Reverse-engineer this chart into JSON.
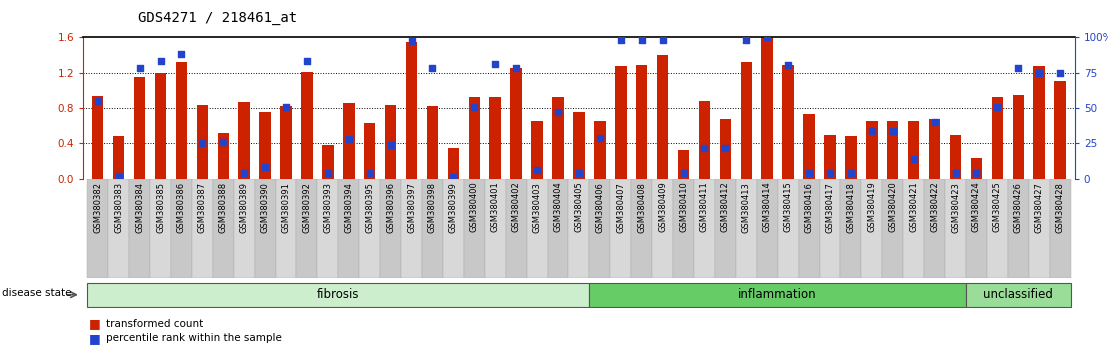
{
  "title": "GDS4271 / 218461_at",
  "samples": [
    "GSM380382",
    "GSM380383",
    "GSM380384",
    "GSM380385",
    "GSM380386",
    "GSM380387",
    "GSM380388",
    "GSM380389",
    "GSM380390",
    "GSM380391",
    "GSM380392",
    "GSM380393",
    "GSM380394",
    "GSM380395",
    "GSM380396",
    "GSM380397",
    "GSM380398",
    "GSM380399",
    "GSM380400",
    "GSM380401",
    "GSM380402",
    "GSM380403",
    "GSM380404",
    "GSM380405",
    "GSM380406",
    "GSM380407",
    "GSM380408",
    "GSM380409",
    "GSM380410",
    "GSM380411",
    "GSM380412",
    "GSM380413",
    "GSM380414",
    "GSM380415",
    "GSM380416",
    "GSM380417",
    "GSM380418",
    "GSM380419",
    "GSM380420",
    "GSM380421",
    "GSM380422",
    "GSM380423",
    "GSM380424",
    "GSM380425",
    "GSM380426",
    "GSM380427",
    "GSM380428"
  ],
  "bar_values": [
    0.93,
    0.48,
    1.15,
    1.19,
    1.32,
    0.83,
    0.52,
    0.87,
    0.75,
    0.82,
    1.21,
    0.38,
    0.86,
    0.63,
    0.83,
    1.55,
    0.82,
    0.35,
    0.92,
    0.92,
    1.25,
    0.65,
    0.92,
    0.75,
    0.65,
    1.27,
    1.28,
    1.4,
    0.33,
    0.88,
    0.68,
    1.32,
    1.6,
    1.28,
    0.73,
    0.5,
    0.48,
    0.65,
    0.65,
    0.65,
    0.68,
    0.5,
    0.23,
    0.92,
    0.95,
    1.27,
    1.1
  ],
  "dot_values_pct": [
    55,
    2,
    78,
    83,
    88,
    25,
    26,
    4,
    8,
    51,
    83,
    4,
    28,
    4,
    24,
    97,
    78,
    1,
    51,
    81,
    78,
    6,
    47,
    4,
    29,
    98,
    98,
    98,
    4,
    22,
    22,
    98,
    100,
    80,
    4,
    4,
    4,
    34,
    34,
    14,
    40,
    4,
    4,
    51,
    78,
    75,
    75
  ],
  "groups": [
    {
      "label": "fibrosis",
      "start": 0,
      "end": 24,
      "color": "#cceecc"
    },
    {
      "label": "inflammation",
      "start": 24,
      "end": 42,
      "color": "#66cc66"
    },
    {
      "label": "unclassified",
      "start": 42,
      "end": 47,
      "color": "#99dd99"
    }
  ],
  "ylim": [
    0,
    1.6
  ],
  "y_ticks_left": [
    0,
    0.4,
    0.8,
    1.2,
    1.6
  ],
  "y_ticks_right": [
    0,
    25,
    50,
    75,
    100
  ],
  "bar_color": "#cc2200",
  "dot_color": "#2244cc",
  "title_fontsize": 10,
  "disease_state_label": "disease state"
}
